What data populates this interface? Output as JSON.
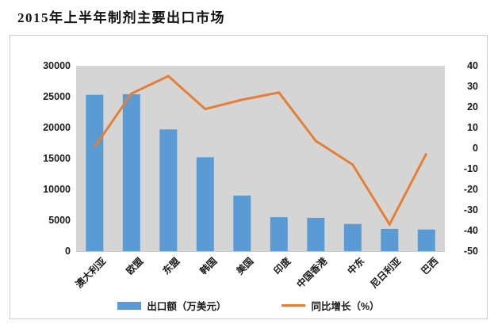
{
  "page": {
    "title": "2015年上半年制剂主要出口市场"
  },
  "legend": {
    "bars": "出口额（万美元）",
    "line": "同比增长（%）"
  },
  "colors": {
    "bar": "#5b9bd5",
    "line": "#e57f35",
    "plot_bg": "#d5d5d5",
    "card_bg": "#ffffff",
    "card_border": "#cccccc",
    "text": "#1a1a1a"
  },
  "chart_data": {
    "type": "bar",
    "subtype": "combo-bar-line-dual-axis",
    "title": "2015年上半年制剂主要出口市场",
    "categories": [
      "澳大利亚",
      "欧盟",
      "东盟",
      "韩国",
      "美国",
      "印度",
      "中国香港",
      "中东",
      "尼日利亚",
      "巴西"
    ],
    "series": [
      {
        "name": "出口额（万美元）",
        "type": "bar",
        "axis": "left",
        "values": [
          25300,
          25400,
          19700,
          15200,
          9000,
          5500,
          5400,
          4400,
          3600,
          3500
        ]
      },
      {
        "name": "同比增长（%）",
        "type": "line",
        "axis": "right",
        "values": [
          0.5,
          26.5,
          35,
          19,
          23.5,
          27,
          3.5,
          -8,
          -37,
          -2.5
        ]
      }
    ],
    "left_axis": {
      "min": 0,
      "max": 30000,
      "ticks": [
        30000,
        25000,
        20000,
        15000,
        10000,
        5000,
        0
      ]
    },
    "right_axis": {
      "min": -50,
      "max": 40,
      "ticks": [
        40,
        30,
        20,
        10,
        0,
        -10,
        -20,
        -30,
        -40,
        -50
      ]
    },
    "grid": false,
    "legend_position": "bottom",
    "x_label_rotation": -45
  }
}
